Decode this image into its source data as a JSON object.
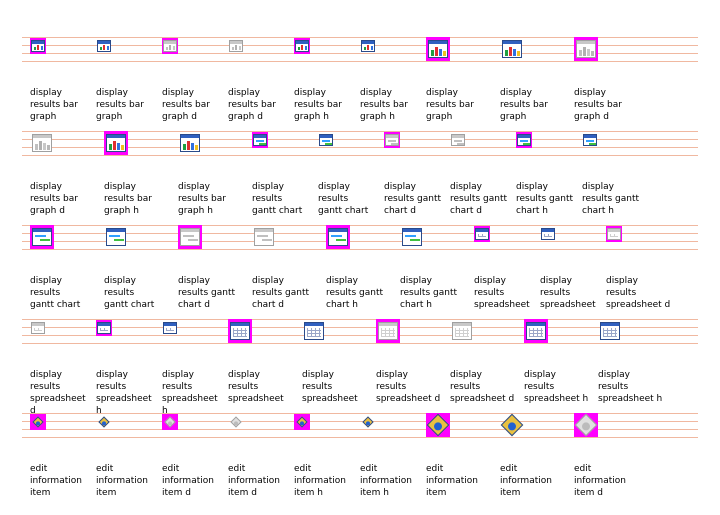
{
  "rows": [
    {
      "items": [
        {
          "type": "bar",
          "size": "s",
          "hl": true,
          "dis": false,
          "label": "display\nresults bar\ngraph"
        },
        {
          "type": "bar",
          "size": "s",
          "hl": false,
          "dis": false,
          "label": "display\nresults bar\ngraph"
        },
        {
          "type": "bar",
          "size": "s",
          "hl": true,
          "dis": true,
          "label": "display\nresults bar\ngraph d"
        },
        {
          "type": "bar",
          "size": "s",
          "hl": false,
          "dis": true,
          "label": "display\nresults bar\ngraph d"
        },
        {
          "type": "bar",
          "size": "s",
          "hl": true,
          "dis": false,
          "label": "display\nresults bar\ngraph h"
        },
        {
          "type": "bar",
          "size": "s",
          "hl": false,
          "dis": false,
          "label": "display\nresults bar\ngraph h"
        },
        {
          "type": "bar",
          "size": "l",
          "hl": true,
          "dis": false,
          "label": "display\nresults bar\ngraph"
        },
        {
          "type": "bar",
          "size": "l",
          "hl": false,
          "dis": false,
          "label": "display\nresults bar\ngraph"
        },
        {
          "type": "bar",
          "size": "l",
          "hl": true,
          "dis": true,
          "label": "display\nresults bar\ngraph d"
        }
      ]
    },
    {
      "items": [
        {
          "type": "bar",
          "size": "l",
          "hl": false,
          "dis": true,
          "label": "display\nresults bar\ngraph d"
        },
        {
          "type": "bar",
          "size": "l",
          "hl": true,
          "dis": false,
          "label": "display\nresults bar\ngraph h"
        },
        {
          "type": "bar",
          "size": "l",
          "hl": false,
          "dis": false,
          "label": "display\nresults bar\ngraph h"
        },
        {
          "type": "gantt",
          "size": "s",
          "hl": true,
          "dis": false,
          "label": "display\nresults\ngantt chart"
        },
        {
          "type": "gantt",
          "size": "s",
          "hl": false,
          "dis": false,
          "label": "display\nresults\ngantt chart"
        },
        {
          "type": "gantt",
          "size": "s",
          "hl": true,
          "dis": true,
          "label": "display\nresults gantt\nchart d"
        },
        {
          "type": "gantt",
          "size": "s",
          "hl": false,
          "dis": true,
          "label": "display\nresults gantt\nchart d"
        },
        {
          "type": "gantt",
          "size": "s",
          "hl": true,
          "dis": false,
          "label": "display\nresults gantt\nchart h"
        },
        {
          "type": "gantt",
          "size": "s",
          "hl": false,
          "dis": false,
          "label": "display\nresults gantt\nchart h"
        }
      ]
    },
    {
      "items": [
        {
          "type": "gantt",
          "size": "l",
          "hl": true,
          "dis": false,
          "label": "display\nresults\ngantt chart"
        },
        {
          "type": "gantt",
          "size": "l",
          "hl": false,
          "dis": false,
          "label": "display\nresults\ngantt chart"
        },
        {
          "type": "gantt",
          "size": "l",
          "hl": true,
          "dis": true,
          "label": "display\nresults gantt\nchart d"
        },
        {
          "type": "gantt",
          "size": "l",
          "hl": false,
          "dis": true,
          "label": "display\nresults gantt\nchart d"
        },
        {
          "type": "gantt",
          "size": "l",
          "hl": true,
          "dis": false,
          "label": "display\nresults gantt\nchart h"
        },
        {
          "type": "gantt",
          "size": "l",
          "hl": false,
          "dis": false,
          "label": "display\nresults gantt\nchart h"
        },
        {
          "type": "sheet",
          "size": "s",
          "hl": true,
          "dis": false,
          "label": "display\nresults\nspreadsheet"
        },
        {
          "type": "sheet",
          "size": "s",
          "hl": false,
          "dis": false,
          "label": "display\nresults\nspreadsheet"
        },
        {
          "type": "sheet",
          "size": "s",
          "hl": true,
          "dis": true,
          "label": "display\nresults\nspreadsheet d"
        }
      ]
    },
    {
      "items": [
        {
          "type": "sheet",
          "size": "s",
          "hl": false,
          "dis": true,
          "label": "display\nresults\nspreadsheet\nd"
        },
        {
          "type": "sheet",
          "size": "s",
          "hl": true,
          "dis": false,
          "label": "display\nresults\nspreadsheet\nh"
        },
        {
          "type": "sheet",
          "size": "s",
          "hl": false,
          "dis": false,
          "label": "display\nresults\nspreadsheet\nh"
        },
        {
          "type": "sheet",
          "size": "l",
          "hl": true,
          "dis": false,
          "label": "display\nresults\nspreadsheet"
        },
        {
          "type": "sheet",
          "size": "l",
          "hl": false,
          "dis": false,
          "label": "display\nresults\nspreadsheet"
        },
        {
          "type": "sheet",
          "size": "l",
          "hl": true,
          "dis": true,
          "label": "display\nresults\nspreadsheet d"
        },
        {
          "type": "sheet",
          "size": "l",
          "hl": false,
          "dis": true,
          "label": "display\nresults\nspreadsheet d"
        },
        {
          "type": "sheet",
          "size": "l",
          "hl": true,
          "dis": false,
          "label": "display\nresults\nspreadsheet h"
        },
        {
          "type": "sheet",
          "size": "l",
          "hl": false,
          "dis": false,
          "label": "display\nresults\nspreadsheet h"
        }
      ]
    },
    {
      "items": [
        {
          "type": "edit",
          "size": "s",
          "hl": true,
          "dis": false,
          "label": "edit\ninformation\nitem"
        },
        {
          "type": "edit",
          "size": "s",
          "hl": false,
          "dis": false,
          "label": "edit\ninformation\nitem"
        },
        {
          "type": "edit",
          "size": "s",
          "hl": true,
          "dis": true,
          "label": "edit\ninformation\nitem d"
        },
        {
          "type": "edit",
          "size": "s",
          "hl": false,
          "dis": true,
          "label": "edit\ninformation\nitem d"
        },
        {
          "type": "edit",
          "size": "s",
          "hl": true,
          "dis": false,
          "label": "edit\ninformation\nitem h"
        },
        {
          "type": "edit",
          "size": "s",
          "hl": false,
          "dis": false,
          "label": "edit\ninformation\nitem h"
        },
        {
          "type": "edit",
          "size": "l",
          "hl": true,
          "dis": false,
          "label": "edit\ninformation\nitem"
        },
        {
          "type": "edit",
          "size": "l",
          "hl": false,
          "dis": false,
          "label": "edit\ninformation\nitem"
        },
        {
          "type": "edit",
          "size": "l",
          "hl": true,
          "dis": true,
          "label": "edit\ninformation\nitem d"
        }
      ]
    }
  ],
  "colors": {
    "highlight": "#ff00ff",
    "guide_line": "#f0b8a0",
    "frame_border": "#2a4a8a",
    "title_bar": "#3060c0"
  }
}
